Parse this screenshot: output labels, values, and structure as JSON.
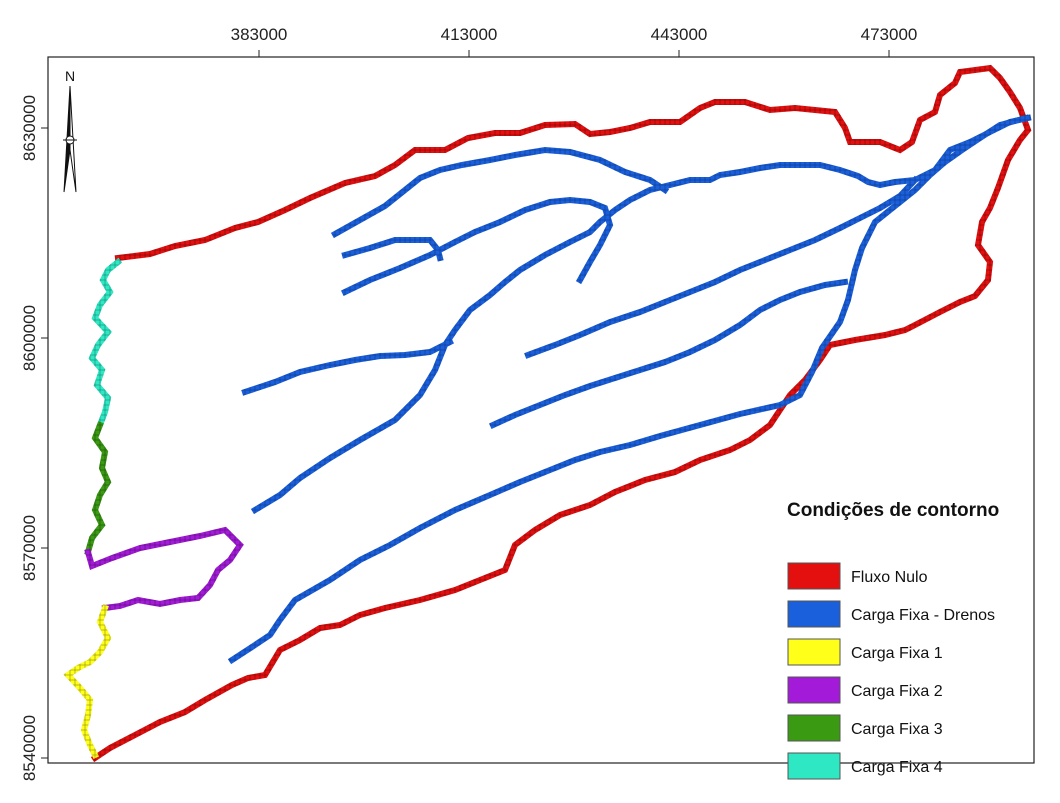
{
  "map": {
    "x_ticks": [
      "383000",
      "413000",
      "443000",
      "473000"
    ],
    "y_ticks": [
      "8630000",
      "8600000",
      "8570000",
      "8540000"
    ],
    "north_label": "N"
  },
  "legend": {
    "title": "Condições de contorno",
    "items": [
      {
        "key": "nulo",
        "label": "Fluxo Nulo",
        "color": "#e3100f"
      },
      {
        "key": "drenos",
        "label": "Carga Fixa - Drenos",
        "color": "#1a60dc"
      },
      {
        "key": "c1",
        "label": "Carga Fixa 1",
        "color": "#ffff1a"
      },
      {
        "key": "c2",
        "label": "Carga Fixa 2",
        "color": "#a31ad8"
      },
      {
        "key": "c3",
        "label": "Carga Fixa 3",
        "color": "#3a9a12"
      },
      {
        "key": "c4",
        "label": "Carga Fixa 4",
        "color": "#2ee8c4"
      }
    ]
  }
}
